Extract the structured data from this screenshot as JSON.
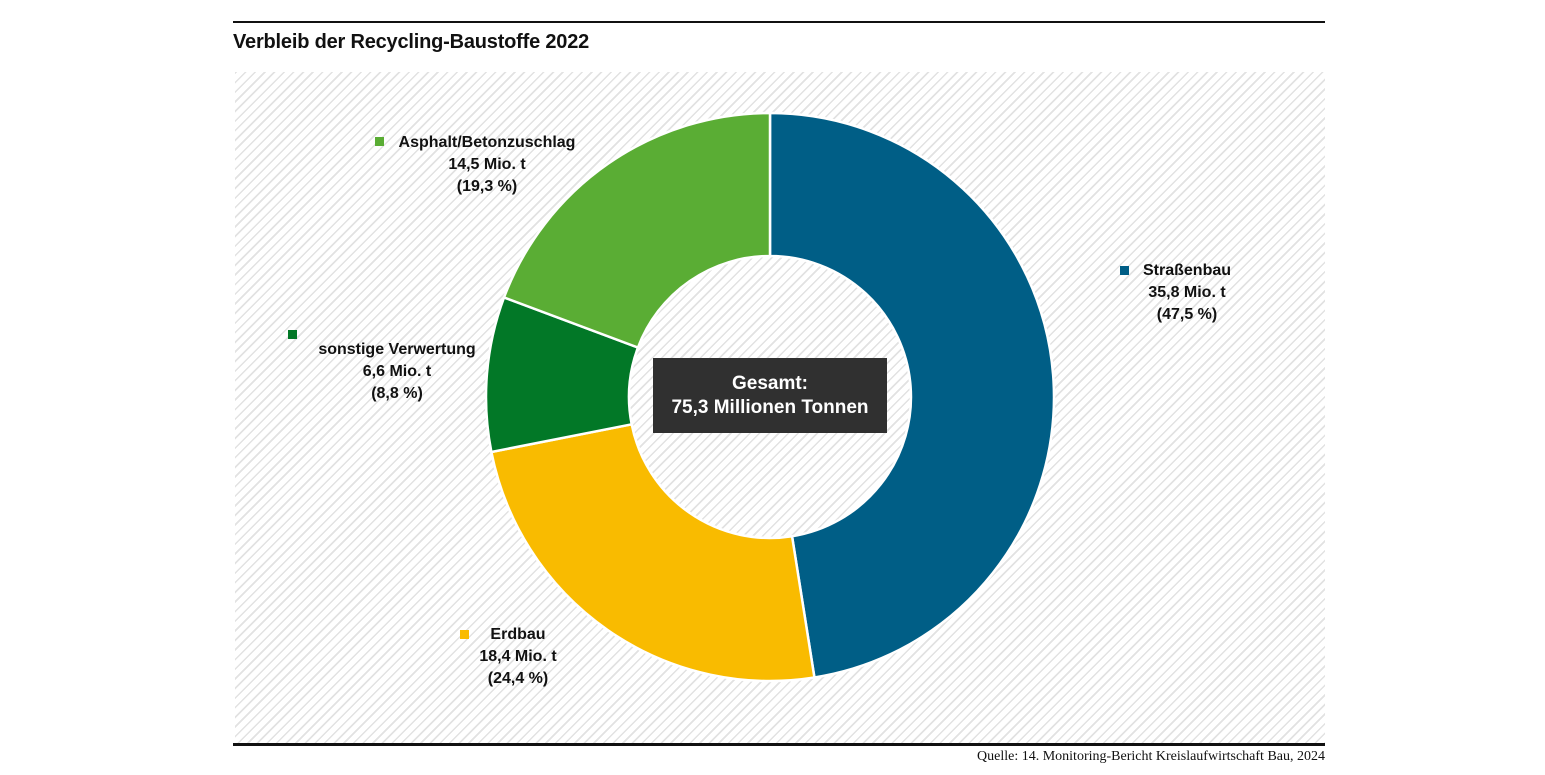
{
  "title": "Verbleib der Recycling-Baustoffe 2022",
  "source": "Quelle: 14. Monitoring-Bericht Kreislaufwirtschaft Bau, 2024",
  "center_label": {
    "line1": "Gesamt:",
    "line2": "75,3 Millionen Tonnen"
  },
  "colors": {
    "center_box_bg": "#303030",
    "center_box_text": "#ffffff",
    "hatch_line": "#e2e2e2",
    "rule": "#111111"
  },
  "chart_data": {
    "type": "pie",
    "subtype": "donut",
    "title": "Verbleib der Recycling-Baustoffe 2022",
    "total_value": 75.3,
    "total_unit": "Millionen Tonnen",
    "start_angle_deg": 0,
    "direction": "clockwise",
    "legend_position": "around-chart",
    "slices": [
      {
        "label": "Straßenbau",
        "value": 35.8,
        "percent": 47.5,
        "amount_text": "35,8 Mio. t",
        "percent_text": "(47,5 %)",
        "color": "#005E86"
      },
      {
        "label": "Erdbau",
        "value": 18.4,
        "percent": 24.4,
        "amount_text": "18,4 Mio. t",
        "percent_text": "(24,4 %)",
        "color": "#F9BB00"
      },
      {
        "label": "sonstige Verwertung",
        "value": 6.6,
        "percent": 8.8,
        "amount_text": "6,6 Mio. t",
        "percent_text": "(8,8 %)",
        "color": "#027827"
      },
      {
        "label": "Asphalt/Betonzuschlag",
        "value": 14.5,
        "percent": 19.3,
        "amount_text": "14,5 Mio. t",
        "percent_text": "(19,3 %)",
        "color": "#5AAD34"
      }
    ]
  }
}
